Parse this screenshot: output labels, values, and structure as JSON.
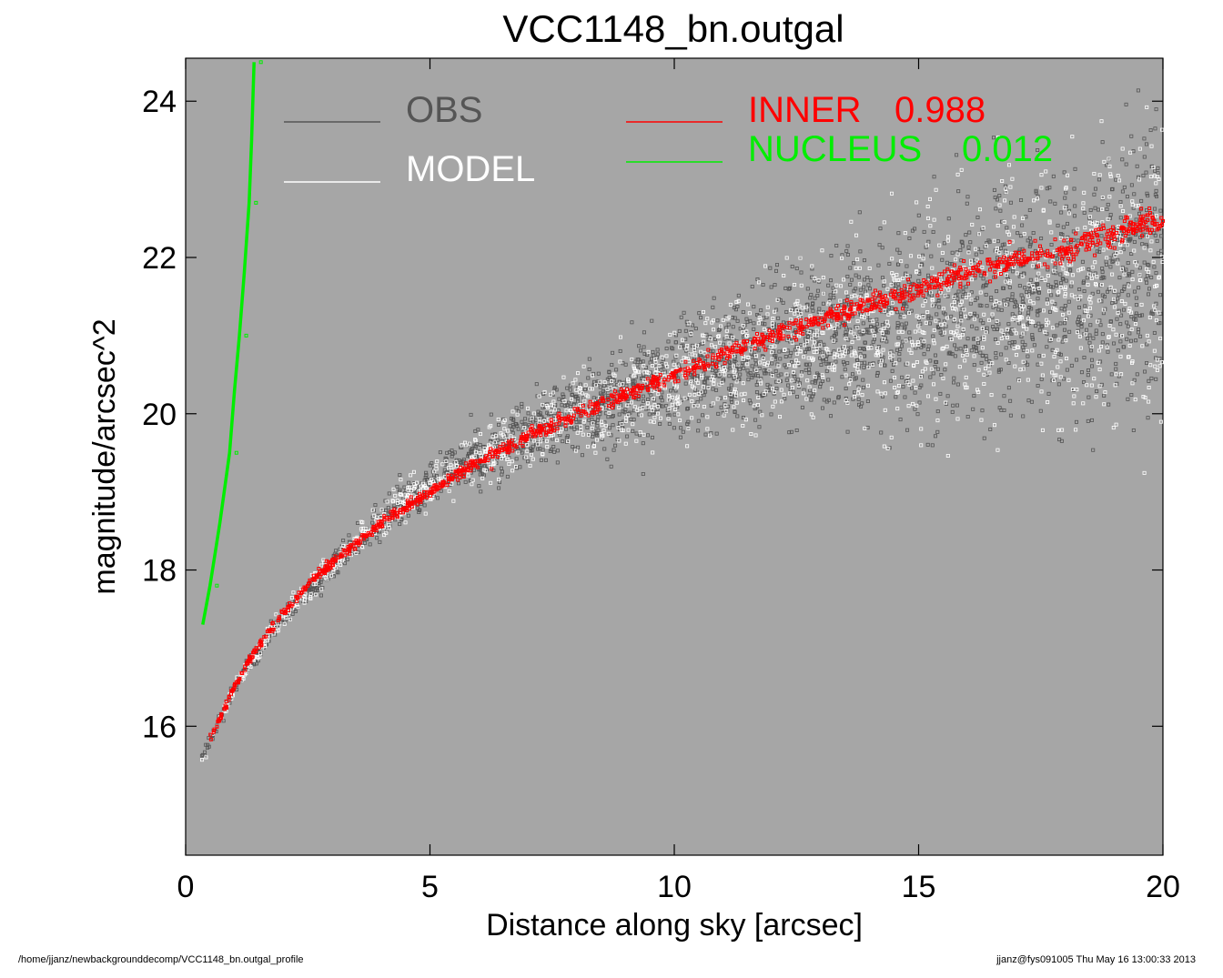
{
  "chart_data": {
    "type": "scatter",
    "title": "VCC1148_bn.outgal",
    "xlabel": "Distance along sky [arcsec]",
    "ylabel": "magnitude/arcsec^2",
    "xlim": [
      0,
      20
    ],
    "ylim": [
      24.55,
      14.35
    ],
    "y_inverted": true,
    "x_ticks": [
      0,
      5,
      10,
      15,
      20
    ],
    "y_ticks": [
      16,
      18,
      20,
      22,
      24
    ],
    "background": "#a6a6a6",
    "grid": false,
    "legend": [
      {
        "name": "OBS",
        "color": "#555555"
      },
      {
        "name": "MODEL",
        "color": "#ffffff"
      },
      {
        "name": "INNER",
        "value": "0.988",
        "color": "#ff0000"
      },
      {
        "name": "NUCLEUS",
        "value": "0.012",
        "color": "#00ee00"
      }
    ],
    "series": [
      {
        "name": "OBS",
        "color": "#555555",
        "x": [
          0.3,
          0.5,
          1.0,
          2.0,
          3.0,
          4.0,
          5.0,
          6.0,
          7.0,
          8.0,
          9.0,
          10.0,
          11.0,
          12.0,
          13.0,
          14.0,
          15.0,
          16.0,
          17.0,
          18.0,
          19.0,
          20.0
        ],
        "y": [
          15.55,
          15.8,
          16.5,
          17.4,
          18.05,
          18.65,
          19.1,
          19.45,
          19.75,
          20.0,
          20.2,
          20.4,
          20.6,
          20.8,
          20.95,
          21.1,
          21.25,
          21.4,
          21.5,
          21.6,
          21.7,
          21.85
        ]
      },
      {
        "name": "MODEL",
        "color": "#ffffff",
        "x": [
          0.3,
          0.5,
          1.0,
          2.0,
          3.0,
          4.0,
          5.0,
          6.0,
          7.0,
          8.0,
          9.0,
          10.0,
          11.0,
          12.0,
          13.0,
          14.0,
          15.0,
          16.0,
          17.0,
          18.0,
          19.0,
          20.0
        ],
        "y": [
          15.55,
          15.8,
          16.5,
          17.4,
          18.05,
          18.65,
          19.1,
          19.45,
          19.75,
          20.0,
          20.2,
          20.4,
          20.6,
          20.8,
          20.95,
          21.1,
          21.25,
          21.4,
          21.5,
          21.6,
          21.7,
          21.85
        ]
      },
      {
        "name": "INNER",
        "color": "#ff0000",
        "x": [
          0.5,
          0.7,
          1.0,
          1.5,
          2.0,
          2.5,
          3.0,
          3.5,
          4.0,
          4.5,
          5.0,
          5.5,
          6.0,
          7.0,
          8.0,
          9.0,
          10.0,
          11.0,
          12.0,
          13.0,
          14.0,
          15.0,
          16.0,
          17.0,
          18.0,
          19.0,
          20.0
        ],
        "y": [
          15.85,
          16.1,
          16.5,
          17.05,
          17.45,
          17.8,
          18.1,
          18.35,
          18.6,
          18.8,
          19.0,
          19.2,
          19.4,
          19.7,
          20.0,
          20.25,
          20.5,
          20.75,
          21.0,
          21.2,
          21.4,
          21.6,
          21.8,
          21.95,
          22.1,
          22.3,
          22.5
        ]
      },
      {
        "name": "NUCLEUS",
        "color": "#00ee00",
        "x": [
          0.35,
          0.5,
          0.7,
          0.9,
          1.0,
          1.1,
          1.2,
          1.3,
          1.35,
          1.4
        ],
        "y": [
          17.3,
          17.8,
          18.6,
          19.5,
          20.3,
          21.0,
          21.8,
          22.7,
          23.5,
          24.5
        ]
      }
    ]
  },
  "footer": {
    "left": "/home/jjanz/newbackgrounddecomp/VCC1148_bn.outgal_profile",
    "right": "jjanz@fys091005  Thu May 16 13:00:33 2013"
  }
}
